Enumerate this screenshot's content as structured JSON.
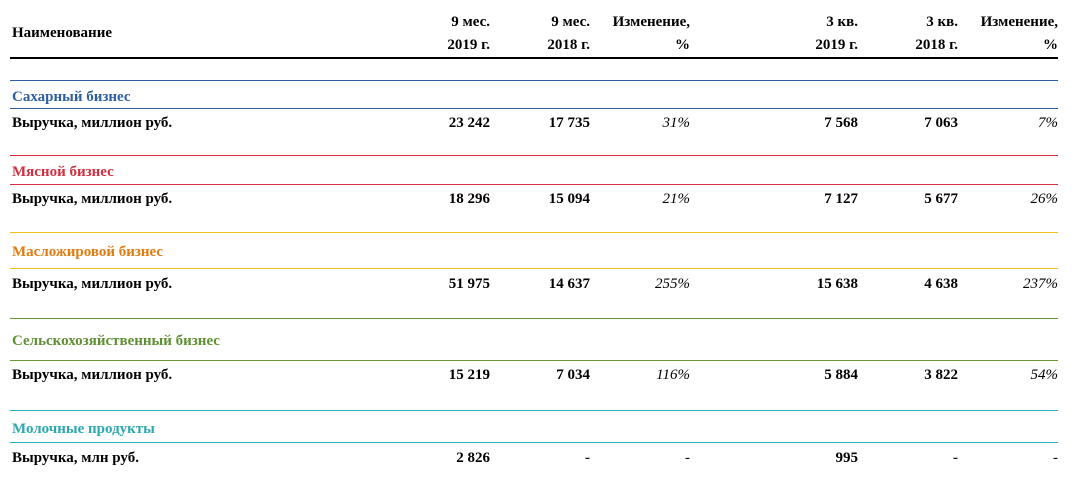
{
  "header": {
    "name": "Наименование",
    "columns": [
      [
        "9 мес.",
        "2019 г."
      ],
      [
        "9 мес.",
        "2018 г."
      ],
      [
        "Изменение,",
        "%"
      ],
      [
        "3 кв.",
        "2019 г."
      ],
      [
        "3 кв.",
        "2018 г."
      ],
      [
        "Изменение,",
        "%"
      ]
    ]
  },
  "sections": [
    {
      "title": "Сахарный бизнес",
      "color": "#2e5fa3",
      "line_color": "#2e5fa3",
      "row": [
        "Выручка, миллион руб.",
        "23 242",
        "17 735",
        "31%",
        "7 568",
        "7 063",
        "7%"
      ]
    },
    {
      "title": "Мясной бизнес",
      "color": "#d0303f",
      "line_color": "#d0303f",
      "row": [
        "Выручка, миллион руб.",
        "18 296",
        "15 094",
        "21%",
        "7 127",
        "5 677",
        "26%"
      ]
    },
    {
      "title": "Масложировой бизнес",
      "color": "#e07b10",
      "line_color": "#f0c020",
      "row": [
        "Выручка, миллион руб.",
        "51 975",
        "14 637",
        "255%",
        "15 638",
        "4 638",
        "237%"
      ]
    },
    {
      "title": "Сельскохозяйственный бизнес",
      "color": "#5f8f33",
      "line_color": "#6a9a3a",
      "row": [
        "Выручка, миллион руб.",
        "15 219",
        "7 034",
        "116%",
        "5 884",
        "3 822",
        "54%"
      ]
    },
    {
      "title": "Молочные продукты",
      "color": "#2ca8b0",
      "line_color": "#2eb0b8",
      "row": [
        "Выручка, млн руб.",
        "2 826",
        "-",
        "-",
        "995",
        "-",
        "-"
      ]
    }
  ]
}
